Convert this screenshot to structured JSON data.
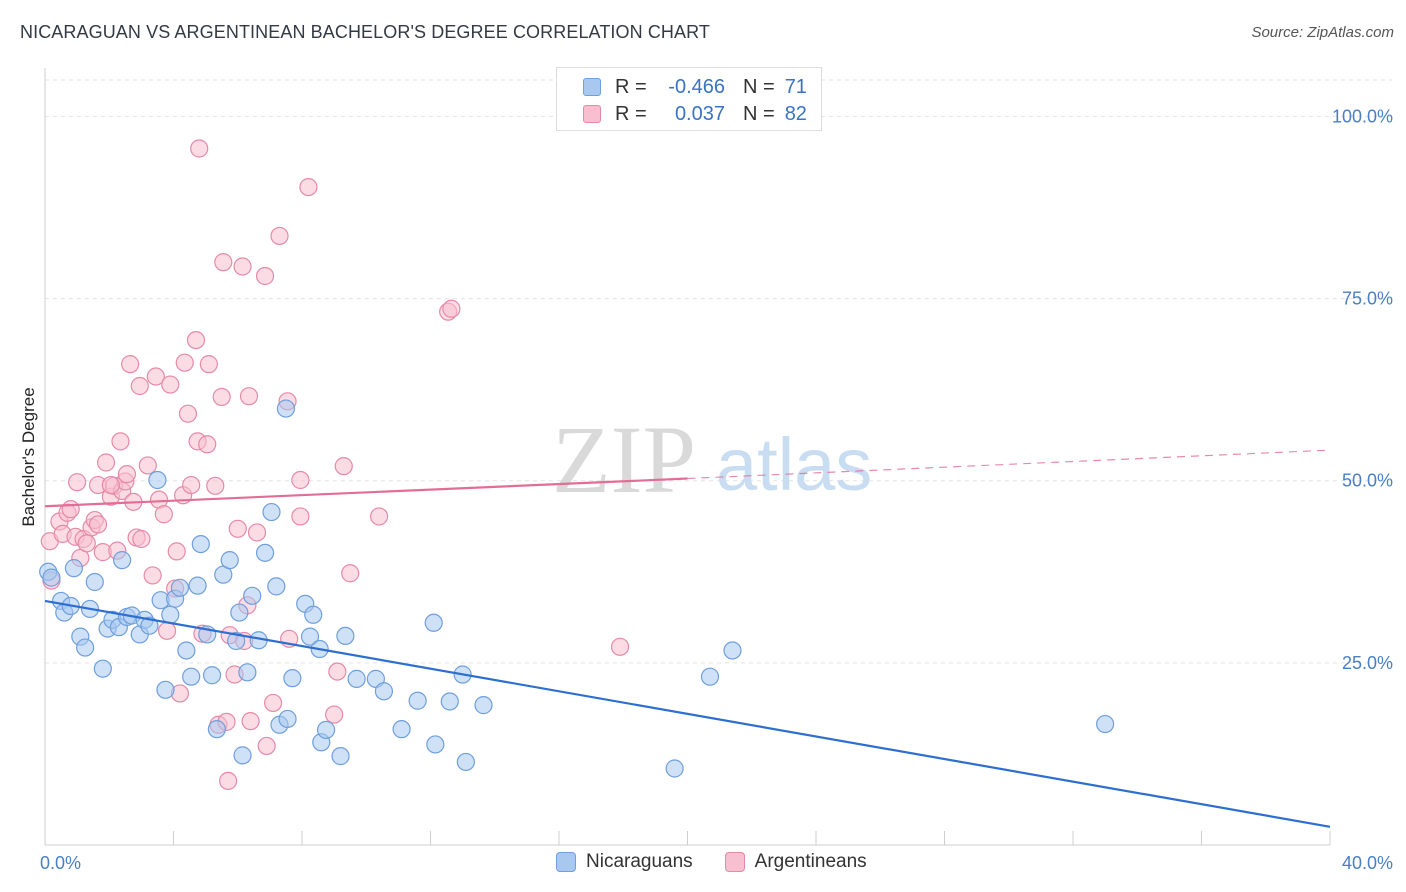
{
  "title": "NICARAGUAN VS ARGENTINEAN BACHELOR'S DEGREE CORRELATION CHART",
  "source": "Source: ZipAtlas.com",
  "watermark": {
    "zip": "ZIP",
    "atlas": "atlas"
  },
  "legend": {
    "rows": [
      {
        "label": "R =",
        "r": "-0.466",
        "n_label": "N =",
        "n": "71",
        "color": "#a8c8f0",
        "border": "#6f9fdc"
      },
      {
        "label": "R =",
        "r": "0.037",
        "n_label": "N =",
        "n": "82",
        "color": "#f7bfd0",
        "border": "#e58aa8"
      }
    ]
  },
  "bottom_legend": [
    "Nicaraguans",
    "Argentineans"
  ],
  "chart_data": {
    "type": "scatter",
    "title": "NICARAGUAN VS ARGENTINEAN BACHELOR'S DEGREE CORRELATION CHART",
    "xlabel": "",
    "ylabel": "Bachelor's Degree",
    "xlim": [
      0,
      40
    ],
    "ylim": [
      0,
      105
    ],
    "x_ticks": [
      0,
      40
    ],
    "x_tick_labels": [
      "0.0%",
      "40.0%"
    ],
    "y_ticks": [
      25,
      50,
      75,
      100
    ],
    "y_tick_labels": [
      "25.0%",
      "50.0%",
      "75.0%",
      "100.0%"
    ],
    "grid": true,
    "legend_position": "top-center",
    "series": [
      {
        "name": "Nicaraguans",
        "color": "#6f9fdc",
        "fill": "#a8c8f0",
        "trend": {
          "x": [
            0,
            40
          ],
          "y": [
            33.5,
            2.5
          ],
          "color": "#2d6fd0"
        },
        "points": [
          [
            0.1,
            37.5
          ],
          [
            0.2,
            36.7
          ],
          [
            0.5,
            33.5
          ],
          [
            0.6,
            31.9
          ],
          [
            0.8,
            32.8
          ],
          [
            0.9,
            38.0
          ],
          [
            1.1,
            28.6
          ],
          [
            1.25,
            27.1
          ],
          [
            1.4,
            32.4
          ],
          [
            1.55,
            36.1
          ],
          [
            1.8,
            24.2
          ],
          [
            1.95,
            29.7
          ],
          [
            2.1,
            30.9
          ],
          [
            2.3,
            29.9
          ],
          [
            2.4,
            39.1
          ],
          [
            2.55,
            31.3
          ],
          [
            2.7,
            31.5
          ],
          [
            2.95,
            28.9
          ],
          [
            3.1,
            30.9
          ],
          [
            3.25,
            30.1
          ],
          [
            3.5,
            50.1
          ],
          [
            3.6,
            33.6
          ],
          [
            3.75,
            21.3
          ],
          [
            3.9,
            31.6
          ],
          [
            4.05,
            33.8
          ],
          [
            4.2,
            35.3
          ],
          [
            4.4,
            26.7
          ],
          [
            4.55,
            23.1
          ],
          [
            4.75,
            35.6
          ],
          [
            4.85,
            41.3
          ],
          [
            5.05,
            28.9
          ],
          [
            5.2,
            23.3
          ],
          [
            5.35,
            15.9
          ],
          [
            5.55,
            37.1
          ],
          [
            5.75,
            39.1
          ],
          [
            5.95,
            28.0
          ],
          [
            6.05,
            31.9
          ],
          [
            6.3,
            23.7
          ],
          [
            6.45,
            34.2
          ],
          [
            6.65,
            28.1
          ],
          [
            6.85,
            40.1
          ],
          [
            7.05,
            45.7
          ],
          [
            7.2,
            35.5
          ],
          [
            7.3,
            16.5
          ],
          [
            7.5,
            59.9
          ],
          [
            7.55,
            17.3
          ],
          [
            7.7,
            22.9
          ],
          [
            8.1,
            33.1
          ],
          [
            8.25,
            28.6
          ],
          [
            8.35,
            31.6
          ],
          [
            8.55,
            26.9
          ],
          [
            8.6,
            14.1
          ],
          [
            8.75,
            15.8
          ],
          [
            9.2,
            12.2
          ],
          [
            9.35,
            28.7
          ],
          [
            9.7,
            22.8
          ],
          [
            10.3,
            22.8
          ],
          [
            10.55,
            21.1
          ],
          [
            11.1,
            15.9
          ],
          [
            11.6,
            19.8
          ],
          [
            12.1,
            30.5
          ],
          [
            12.15,
            13.8
          ],
          [
            12.6,
            19.7
          ],
          [
            13.0,
            23.4
          ],
          [
            13.1,
            11.4
          ],
          [
            13.65,
            19.2
          ],
          [
            19.6,
            10.5
          ],
          [
            20.7,
            23.1
          ],
          [
            21.4,
            26.7
          ],
          [
            33.0,
            16.6
          ],
          [
            6.15,
            12.3
          ]
        ]
      },
      {
        "name": "Argentineans",
        "color": "#e58aa8",
        "fill": "#f7bfd0",
        "trend": {
          "x": [
            0,
            20
          ],
          "y": [
            46.5,
            50.3
          ],
          "dashed_to": [
            40,
            54.2
          ],
          "color": "#e26d96"
        },
        "points": [
          [
            0.15,
            41.7
          ],
          [
            0.2,
            36.3
          ],
          [
            0.45,
            44.4
          ],
          [
            0.55,
            42.7
          ],
          [
            0.7,
            45.6
          ],
          [
            0.8,
            46.1
          ],
          [
            0.95,
            42.3
          ],
          [
            1.0,
            49.8
          ],
          [
            1.1,
            39.4
          ],
          [
            1.2,
            42.0
          ],
          [
            1.3,
            41.4
          ],
          [
            1.45,
            43.6
          ],
          [
            1.55,
            44.6
          ],
          [
            1.65,
            49.4
          ],
          [
            1.8,
            40.2
          ],
          [
            1.9,
            52.5
          ],
          [
            2.05,
            47.8
          ],
          [
            2.15,
            49.3
          ],
          [
            2.25,
            40.4
          ],
          [
            2.35,
            55.4
          ],
          [
            2.4,
            48.6
          ],
          [
            2.5,
            49.9
          ],
          [
            2.55,
            50.9
          ],
          [
            2.65,
            66.0
          ],
          [
            2.75,
            47.1
          ],
          [
            2.85,
            42.2
          ],
          [
            2.95,
            63.0
          ],
          [
            3.2,
            52.1
          ],
          [
            3.35,
            37.0
          ],
          [
            3.45,
            64.3
          ],
          [
            3.55,
            47.4
          ],
          [
            3.7,
            45.4
          ],
          [
            3.8,
            29.4
          ],
          [
            3.9,
            63.2
          ],
          [
            4.05,
            35.2
          ],
          [
            4.1,
            40.3
          ],
          [
            4.2,
            20.8
          ],
          [
            4.3,
            48.0
          ],
          [
            4.35,
            66.2
          ],
          [
            4.45,
            59.2
          ],
          [
            4.55,
            49.4
          ],
          [
            4.7,
            69.3
          ],
          [
            4.75,
            55.4
          ],
          [
            4.8,
            95.6
          ],
          [
            5.1,
            66.0
          ],
          [
            5.3,
            49.3
          ],
          [
            5.4,
            16.5
          ],
          [
            5.5,
            61.5
          ],
          [
            5.55,
            80.0
          ],
          [
            5.65,
            16.9
          ],
          [
            5.7,
            8.8
          ],
          [
            5.75,
            28.8
          ],
          [
            5.9,
            23.4
          ],
          [
            6.0,
            43.4
          ],
          [
            6.15,
            79.4
          ],
          [
            6.3,
            32.9
          ],
          [
            6.35,
            61.6
          ],
          [
            6.4,
            17.0
          ],
          [
            6.6,
            42.9
          ],
          [
            6.85,
            78.1
          ],
          [
            6.9,
            13.6
          ],
          [
            7.1,
            19.5
          ],
          [
            7.3,
            83.6
          ],
          [
            7.55,
            60.9
          ],
          [
            7.6,
            28.3
          ],
          [
            7.95,
            45.1
          ],
          [
            7.95,
            50.1
          ],
          [
            8.2,
            90.3
          ],
          [
            9.0,
            17.9
          ],
          [
            9.1,
            23.8
          ],
          [
            9.3,
            52.0
          ],
          [
            9.5,
            37.3
          ],
          [
            10.4,
            45.1
          ],
          [
            12.55,
            73.2
          ],
          [
            12.65,
            73.6
          ],
          [
            17.9,
            27.2
          ],
          [
            2.05,
            49.4
          ],
          [
            4.9,
            29.0
          ],
          [
            3.0,
            42.0
          ],
          [
            1.65,
            44.0
          ],
          [
            5.05,
            55.0
          ],
          [
            6.2,
            28.0
          ]
        ]
      }
    ]
  }
}
